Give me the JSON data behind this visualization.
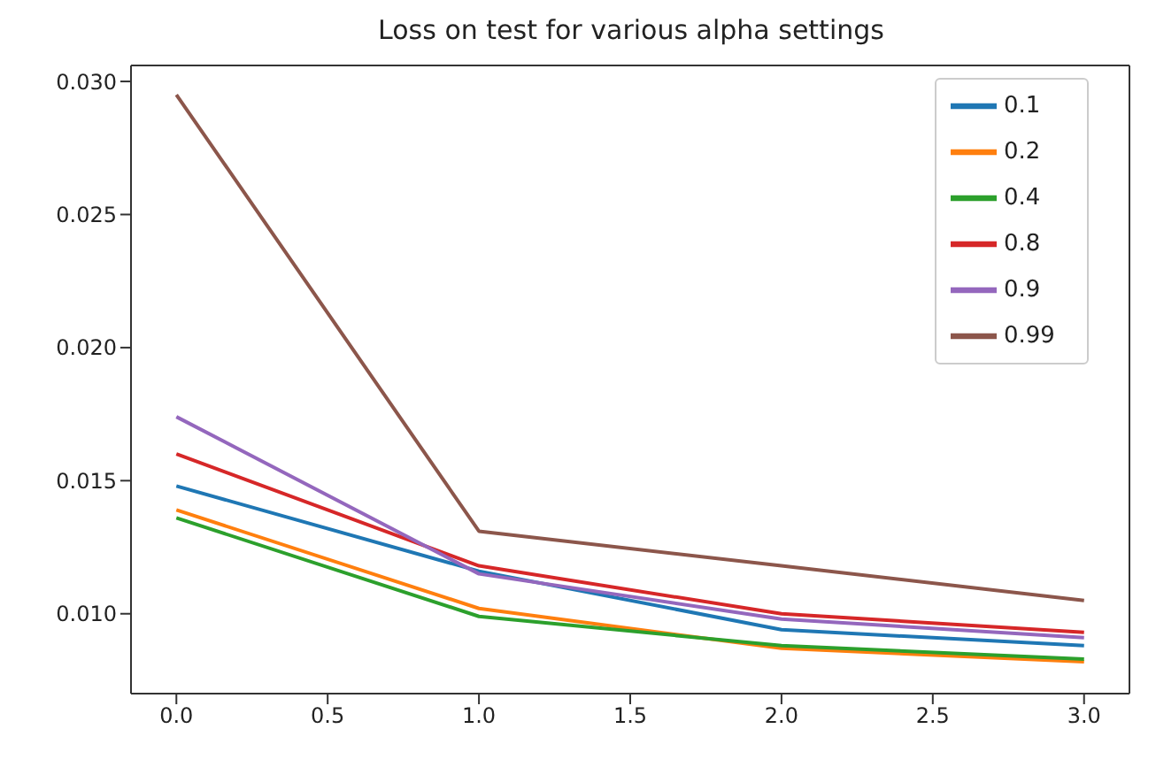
{
  "chart_data": {
    "type": "line",
    "title": "Loss on test for various alpha settings",
    "x": [
      0,
      1,
      2,
      3
    ],
    "series": [
      {
        "name": "0.1",
        "color": "#1f77b4",
        "values": [
          0.0148,
          0.0116,
          0.0094,
          0.0088
        ]
      },
      {
        "name": "0.2",
        "color": "#ff7f0e",
        "values": [
          0.0139,
          0.0102,
          0.0087,
          0.0082
        ]
      },
      {
        "name": "0.4",
        "color": "#2ca02c",
        "values": [
          0.0136,
          0.0099,
          0.0088,
          0.0083
        ]
      },
      {
        "name": "0.8",
        "color": "#d62728",
        "values": [
          0.016,
          0.0118,
          0.01,
          0.0093
        ]
      },
      {
        "name": "0.9",
        "color": "#9467bd",
        "values": [
          0.0174,
          0.0115,
          0.0098,
          0.0091
        ]
      },
      {
        "name": "0.99",
        "color": "#8c564b",
        "values": [
          0.0295,
          0.0131,
          0.0118,
          0.0105
        ]
      }
    ],
    "xlim": [
      -0.15,
      3.15
    ],
    "xticks": [
      {
        "value": 0,
        "label": "0.0"
      },
      {
        "value": 0.5,
        "label": "0.5"
      },
      {
        "value": 1,
        "label": "1.0"
      },
      {
        "value": 1.5,
        "label": "1.5"
      },
      {
        "value": 2,
        "label": "2.0"
      },
      {
        "value": 2.5,
        "label": "2.5"
      },
      {
        "value": 3,
        "label": "3.0"
      }
    ],
    "ylim": [
      0.007,
      0.0306
    ],
    "yticks": [
      {
        "value": 0.01,
        "label": "0.010"
      },
      {
        "value": 0.015,
        "label": "0.015"
      },
      {
        "value": 0.02,
        "label": "0.020"
      },
      {
        "value": 0.025,
        "label": "0.025"
      },
      {
        "value": 0.03,
        "label": "0.030"
      }
    ],
    "grid": false,
    "legend": "top right",
    "marker": "none",
    "line_style": "solid"
  }
}
